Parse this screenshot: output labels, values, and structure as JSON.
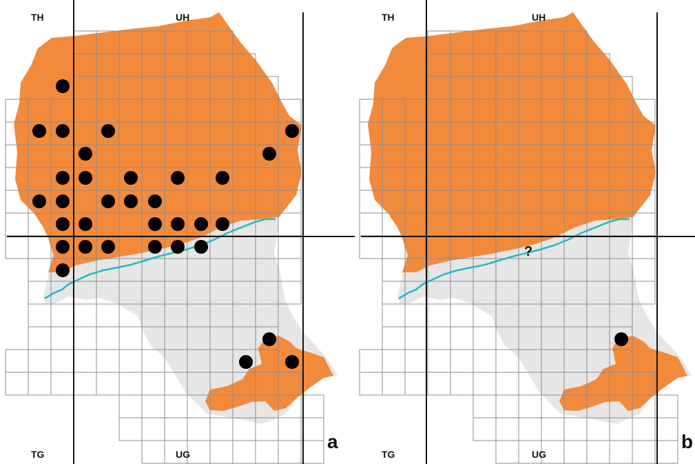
{
  "colors": {
    "presence_area": "#f28a3c",
    "absence_area": "#e6e6e6",
    "grid_line": "#8c8c8c",
    "zone_line": "#111111",
    "river": "#25b8c5",
    "record_dot": "#000000"
  },
  "panels": [
    {
      "letter": "a",
      "zone_labels": {
        "top_left": "TH",
        "top_right": "UH",
        "bottom_left": "TG",
        "bottom_right": "UG"
      },
      "record_count": 32
    },
    {
      "letter": "b",
      "zone_labels": {
        "top_left": "TH",
        "top_right": "UH",
        "bottom_left": "TG",
        "bottom_right": "UG"
      },
      "uncertain_marker": "?",
      "record_count": 1
    }
  ]
}
